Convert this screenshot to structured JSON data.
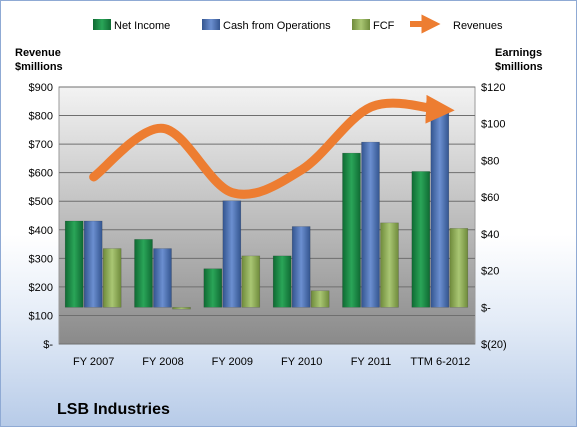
{
  "chart_data": {
    "type": "bar",
    "title": "",
    "company": "LSB Industries",
    "categories": [
      "FY 2007",
      "FY 2008",
      "FY 2009",
      "FY 2010",
      "FY 2011",
      "TTM 6-2012"
    ],
    "left_axis": {
      "label_line1": "Revenue",
      "label_line2": "$millions",
      "ylim": [
        0,
        900
      ],
      "ticks": [
        0,
        100,
        200,
        300,
        400,
        500,
        600,
        700,
        800,
        900
      ],
      "tick_labels": [
        "$-",
        "$100",
        "$200",
        "$300",
        "$400",
        "$500",
        "$600",
        "$700",
        "$800",
        "$900"
      ]
    },
    "right_axis": {
      "label_line1": "Earnings",
      "label_line2": "$millions",
      "ylim": [
        -20,
        120
      ],
      "ticks": [
        -20,
        0,
        20,
        40,
        60,
        80,
        100,
        120
      ],
      "tick_labels": [
        "$(20)",
        "$-",
        "$20",
        "$40",
        "$60",
        "$80",
        "$100",
        "$120"
      ]
    },
    "series": [
      {
        "name": "Net Income",
        "axis": "right",
        "kind": "bar",
        "color": "#1e8a48",
        "values": [
          47,
          37,
          21,
          28,
          84,
          74
        ]
      },
      {
        "name": "Cash from Operations",
        "axis": "right",
        "kind": "bar",
        "color": "#4f72b5",
        "values": [
          47,
          32,
          58,
          44,
          90,
          107
        ]
      },
      {
        "name": "FCF",
        "axis": "right",
        "kind": "bar",
        "color": "#8fad5a",
        "values": [
          32,
          -1,
          28,
          9,
          46,
          43
        ]
      },
      {
        "name": "Revenues",
        "axis": "left",
        "kind": "line",
        "color": "#ed7d31",
        "values": [
          585,
          755,
          530,
          610,
          830,
          820
        ]
      }
    ],
    "grid": true,
    "legend_position": "top"
  }
}
